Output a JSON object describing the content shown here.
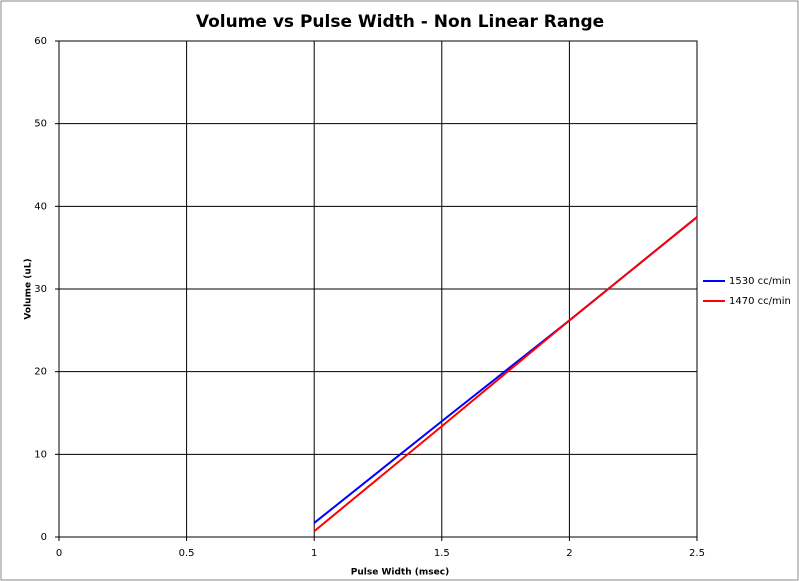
{
  "chart_data": {
    "type": "line",
    "title": "Volume vs Pulse Width - Non Linear Range",
    "x_label": "Pulse Width (msec)",
    "y_label": "Volume (uL)",
    "x": [
      1,
      1.5,
      2,
      2.5
    ],
    "series": [
      {
        "name": "1530 cc/min",
        "color": "#0000ff",
        "values": [
          1.7,
          14.0,
          26.2,
          38.7
        ]
      },
      {
        "name": "1470 cc/min",
        "color": "#ff0000",
        "values": [
          0.7,
          13.4,
          26.2,
          38.7
        ]
      }
    ],
    "xlim": [
      0,
      2.5
    ],
    "xticks": [
      0,
      0.5,
      1,
      1.5,
      2,
      2.5
    ],
    "ylim": [
      0,
      60
    ],
    "yticks": [
      0,
      10,
      20,
      30,
      40,
      50,
      60
    ],
    "grid": true,
    "legend": "right"
  }
}
